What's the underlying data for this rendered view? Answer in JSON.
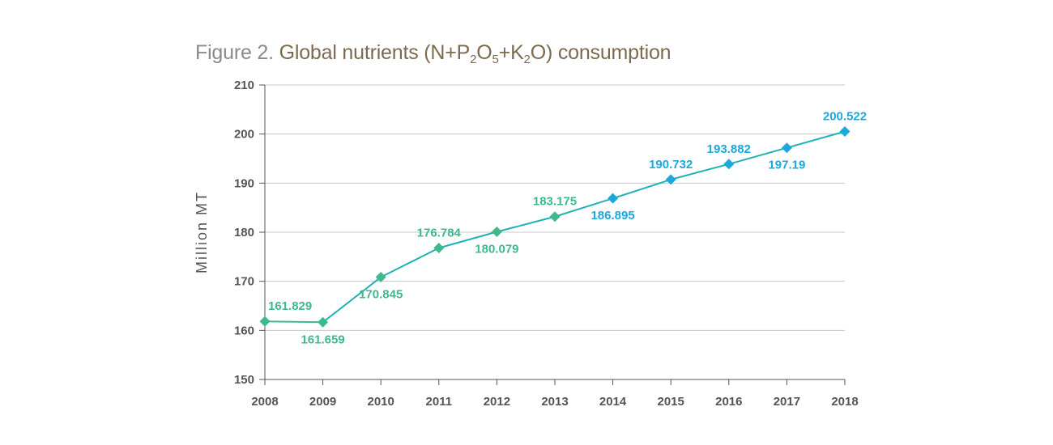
{
  "title": {
    "prefix": "Figure 2.",
    "part1": " Global nutrients (N+P",
    "sub1": "2",
    "part2": "O",
    "sub2": "5",
    "part3": "+K",
    "sub3": "2",
    "part4": "O) consumption"
  },
  "colors": {
    "early": "#3db98c",
    "late": "#1ba9dd",
    "line": "#1fb2b4",
    "grid": "#c8c8c8",
    "axis": "#555555"
  },
  "chart_data": {
    "type": "line",
    "ylabel": "Million MT",
    "xlabel": "",
    "ylim": [
      150,
      210
    ],
    "yticks": [
      150,
      160,
      170,
      180,
      190,
      200,
      210
    ],
    "grid": true,
    "x": [
      "2008",
      "2009",
      "2010",
      "2011",
      "2012",
      "2013",
      "2014",
      "2015",
      "2016",
      "2017",
      "2018"
    ],
    "series": [
      {
        "values": [
          161.829,
          161.659,
          170.845,
          176.784,
          180.079,
          183.175,
          186.895,
          190.732,
          193.882,
          197.19,
          200.522
        ],
        "labels": [
          "161.829",
          "161.659",
          "170.845",
          "176.784",
          "180.079",
          "183.175",
          "186.895",
          "190.732",
          "193.882",
          "197.19",
          "200.522"
        ],
        "label_positions": [
          "above",
          "below",
          "below",
          "above",
          "below",
          "above",
          "below",
          "above",
          "above",
          "below",
          "above"
        ]
      }
    ]
  }
}
